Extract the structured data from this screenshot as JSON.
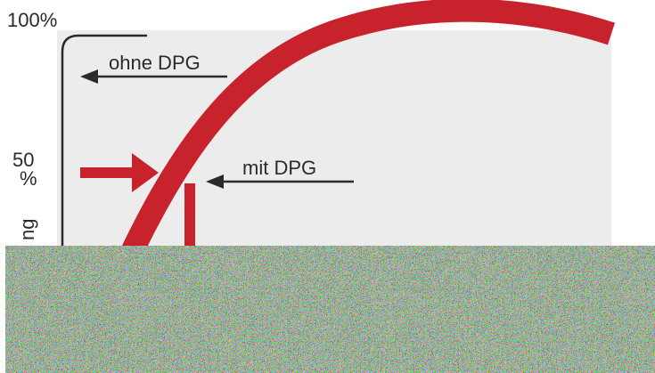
{
  "diagram": {
    "y_axis_top_label": "100%",
    "y_axis_mid_label_line1": "50",
    "y_axis_mid_label_line2": "%",
    "y_axis_partial_label": "ng",
    "annotation_without": "ohne DPG",
    "annotation_with": "mit DPG"
  },
  "colors": {
    "curve": "#c8232c",
    "panel_background": "#ececec",
    "ink": "#2a2a2a",
    "arrow_red": "#c8232c"
  },
  "noise_band": "pixel-noise (corrupted lower region)"
}
